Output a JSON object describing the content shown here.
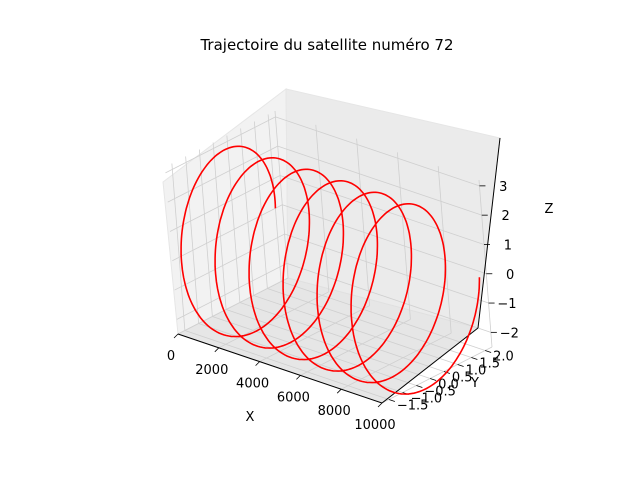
{
  "chart_data": {
    "type": "line",
    "projection": "3d",
    "title": "Trajectoire du satellite numéro 72",
    "xlabel": "X",
    "ylabel": "Y",
    "zlabel": "Z",
    "xlim": [
      0,
      10000
    ],
    "ylim": [
      -1.75,
      2.25
    ],
    "zlim": [
      -2.5,
      3.2
    ],
    "xticks": [
      "0",
      "2000",
      "4000",
      "6000",
      "8000",
      "10000"
    ],
    "yticks": [
      "−1.5",
      "−1.0",
      "−0.5",
      "0.0",
      "0.5",
      "1.0",
      "1.5",
      "2.0"
    ],
    "zticks": [
      "−2",
      "−1",
      "0",
      "1",
      "2",
      "3"
    ],
    "grid": true,
    "series": [
      {
        "color": "#ff0000",
        "style": "helix",
        "x_range": [
          0,
          10000
        ],
        "turns": 6,
        "y_amplitude": 2,
        "z_amplitude": 3
      }
    ]
  }
}
